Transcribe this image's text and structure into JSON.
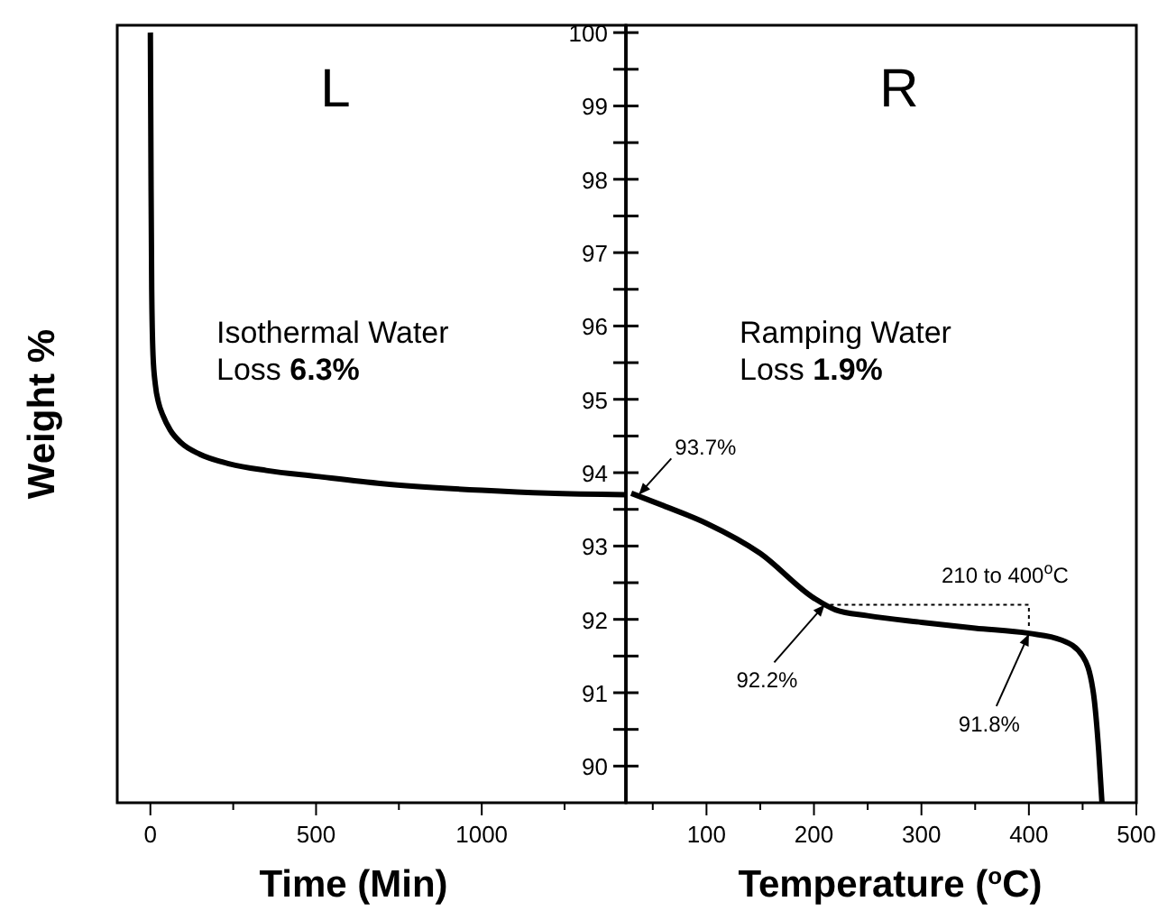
{
  "chart_data": [
    {
      "type": "line",
      "title": "L",
      "xlabel": "Time (Min)",
      "ylabel": "Weight %",
      "xlim": [
        -100,
        1435
      ],
      "ylim": [
        89.5,
        100.1
      ],
      "xticks": [
        0,
        {
          "value": 250,
          "label": null
        },
        500,
        {
          "value": 750,
          "label": null
        },
        1000,
        {
          "value": 1250,
          "label": null
        }
      ],
      "yticks": [
        90,
        {
          "value": 90.5,
          "label": null
        },
        91,
        {
          "value": 91.5,
          "label": null
        },
        92,
        {
          "value": 92.5,
          "label": null
        },
        93,
        {
          "value": 93.5,
          "label": null
        },
        94,
        {
          "value": 94.5,
          "label": null
        },
        95,
        {
          "value": 95.5,
          "label": null
        },
        96,
        {
          "value": 96.5,
          "label": null
        },
        97,
        {
          "value": 97.5,
          "label": null
        },
        98,
        {
          "value": 98.5,
          "label": null
        },
        99,
        {
          "value": 99.5,
          "label": null
        },
        100
      ],
      "grid": false,
      "annotations": [
        "Isothermal Water\nLoss 6.3%"
      ],
      "series": [
        {
          "color": "#000000",
          "x": [
            0,
            2,
            4,
            8,
            15,
            25,
            38,
            60,
            92,
            150,
            239,
            350,
            500,
            700,
            1000,
            1200,
            1435
          ],
          "values": [
            100,
            98,
            96.5,
            95.6,
            95.2,
            94.95,
            94.78,
            94.58,
            94.41,
            94.25,
            94.12,
            94.03,
            93.95,
            93.85,
            93.76,
            93.72,
            93.7
          ]
        }
      ]
    },
    {
      "type": "line",
      "title": "R",
      "xlabel": "Temperature ($^{o}$C)",
      "xlim": [
        25,
        500
      ],
      "ylim": [
        89.5,
        100.1
      ],
      "tick_labels": "x",
      "xticks": [
        {
          "value": 50,
          "label": null
        },
        100,
        {
          "value": 150,
          "label": null
        },
        200,
        {
          "value": 250,
          "label": null
        },
        300,
        {
          "value": 350,
          "label": null
        },
        400,
        {
          "value": 450,
          "label": null
        },
        500
      ],
      "yticks": [
        90,
        {
          "value": 90.5,
          "label": null
        },
        91,
        {
          "value": 91.5,
          "label": null
        },
        92,
        {
          "value": 92.5,
          "label": null
        },
        93,
        {
          "value": 93.5,
          "label": null
        },
        94,
        {
          "value": 94.5,
          "label": null
        },
        95,
        {
          "value": 95.5,
          "label": null
        },
        96,
        {
          "value": 96.5,
          "label": null
        },
        97,
        {
          "value": 97.5,
          "label": null
        },
        98,
        {
          "value": 98.5,
          "label": null
        },
        99,
        {
          "value": 99.5,
          "label": null
        },
        100
      ],
      "grid": false,
      "annotations": [
        "Ramping Water\nLoss 1.9%",
        {
          "text": "93.7%",
          "x": 37,
          "y": 93.7
        },
        {
          "text": "92.2%",
          "x": 210,
          "y": 92.2
        },
        {
          "text": "91.8%",
          "x": 400,
          "y": 91.8
        },
        "210 to 400$^{o}$C"
      ],
      "series": [
        {
          "color": "#000000",
          "x": [
            30,
            60,
            100,
            150,
            200,
            220,
            250,
            300,
            350,
            400,
            430,
            450,
            460,
            465,
            468
          ],
          "values": [
            93.72,
            93.55,
            93.31,
            92.9,
            92.29,
            92.13,
            92.05,
            91.96,
            91.88,
            91.81,
            91.72,
            91.5,
            91.0,
            90.2,
            89.5
          ]
        }
      ]
    }
  ]
}
